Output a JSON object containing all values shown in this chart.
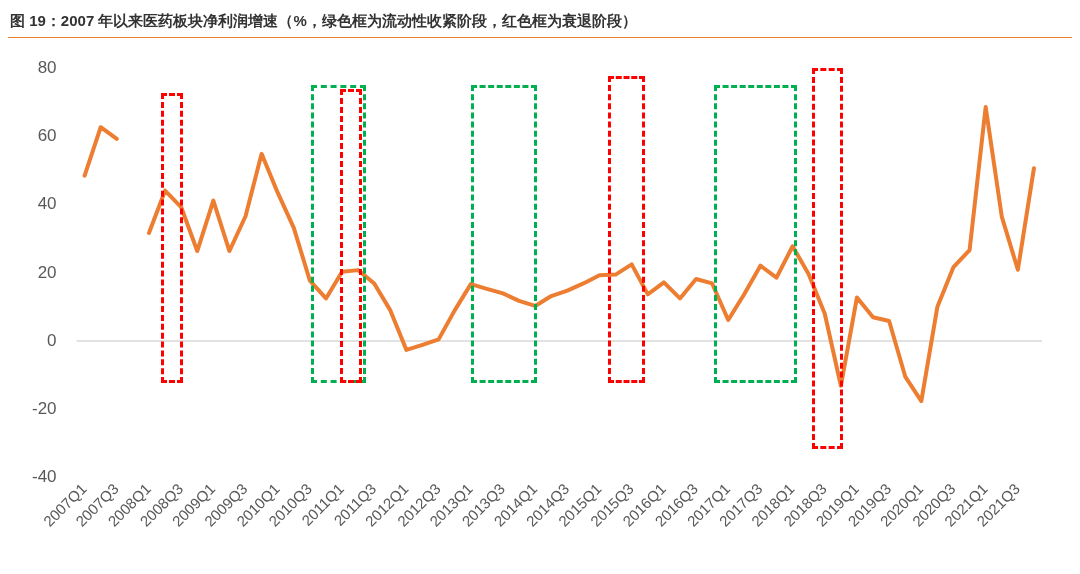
{
  "chart_data": {
    "type": "line",
    "title": "图 19：2007 年以来医药板块净利润增速（%，绿色框为流动性收紧阶段，红色框为衰退阶段）",
    "categories": [
      "2007Q1",
      null,
      "2007Q3",
      null,
      "2008Q1",
      null,
      "2008Q3",
      null,
      "2009Q1",
      null,
      "2009Q3",
      null,
      "2010Q1",
      null,
      "2010Q3",
      null,
      "2011Q1",
      null,
      "2011Q3",
      null,
      "2012Q1",
      null,
      "2012Q3",
      null,
      "2013Q1",
      null,
      "2013Q3",
      null,
      "2014Q1",
      null,
      "2014Q3",
      null,
      "2015Q1",
      null,
      "2015Q3",
      null,
      "2016Q1",
      null,
      "2016Q3",
      null,
      "2017Q1",
      null,
      "2017Q3",
      null,
      "2018Q1",
      null,
      "2018Q3",
      null,
      "2019Q1",
      null,
      "2019Q3",
      null,
      "2020Q1",
      null,
      "2020Q3",
      null,
      "2021Q1",
      null,
      "2021Q3",
      null
    ],
    "series": [
      {
        "color": "#ed7d31",
        "values": [
          48.5,
          62.7,
          59.3,
          null,
          31.7,
          44.1,
          39.3,
          26.4,
          41.2,
          26.4,
          36.6,
          54.9,
          43.5,
          33.2,
          17.7,
          12.5,
          20.3,
          20.8,
          16.9,
          9.0,
          -2.6,
          -1.1,
          0.5,
          9.0,
          16.7,
          15.3,
          14.0,
          11.8,
          10.3,
          13.2,
          14.8,
          16.9,
          19.3,
          19.5,
          22.5,
          13.7,
          17.2,
          12.5,
          18.2,
          16.9,
          6.2,
          13.8,
          22.1,
          18.6,
          27.8,
          19.6,
          8.0,
          -13.1,
          12.8,
          7.0,
          5.9,
          -10.4,
          -17.6,
          10.1,
          21.7,
          26.7,
          68.6,
          36.5,
          20.9,
          50.7
        ]
      }
    ],
    "ylim": [
      -40,
      80
    ],
    "yticks": [
      -40,
      -20,
      0,
      20,
      40,
      60,
      80
    ],
    "ref_lines": [
      {
        "axis": "y",
        "value": 0,
        "color": "#d9d9d9"
      }
    ],
    "grid": false,
    "marker": "none",
    "line_style": "solid"
  }
}
